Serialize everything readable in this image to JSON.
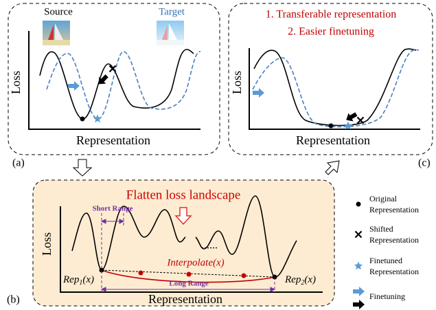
{
  "panel_a": {
    "source_label": "Source",
    "target_label": "Target",
    "y_label": "Loss",
    "x_label": "Representation",
    "tag": "(a)"
  },
  "panel_c": {
    "lines": [
      "1. Transferable representation",
      "2. Easier finetuning"
    ],
    "y_label": "Loss",
    "x_label": "Representation",
    "tag": "(c)"
  },
  "panel_b": {
    "title": "Flatten loss landscape",
    "y_label": "Loss",
    "x_label": "Representation",
    "tag": "(b)",
    "short_range": "Short Range",
    "long_range": "Long Range",
    "ellipsis": "......",
    "interpolate": "Interpolate(x)",
    "rep1": {
      "base": "Rep",
      "sub": "1",
      "arg": "(x)"
    },
    "rep2": {
      "base": "Rep",
      "sub": "2",
      "arg": "(x)"
    }
  },
  "legend": [
    {
      "label": [
        "Original",
        "Representation"
      ]
    },
    {
      "label": [
        "Shifted",
        "Representation"
      ]
    },
    {
      "label": [
        "Finetuned",
        "Representation"
      ]
    },
    {
      "label": [
        "Finetuning"
      ]
    }
  ]
}
